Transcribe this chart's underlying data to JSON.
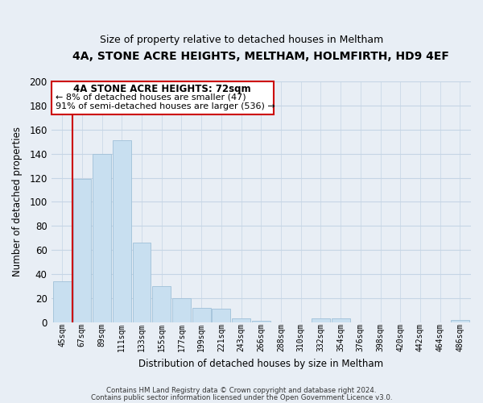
{
  "title": "4A, STONE ACRE HEIGHTS, MELTHAM, HOLMFIRTH, HD9 4EF",
  "subtitle": "Size of property relative to detached houses in Meltham",
  "xlabel": "Distribution of detached houses by size in Meltham",
  "ylabel": "Number of detached properties",
  "bar_labels": [
    "45sqm",
    "67sqm",
    "89sqm",
    "111sqm",
    "133sqm",
    "155sqm",
    "177sqm",
    "199sqm",
    "221sqm",
    "243sqm",
    "266sqm",
    "288sqm",
    "310sqm",
    "332sqm",
    "354sqm",
    "376sqm",
    "398sqm",
    "420sqm",
    "442sqm",
    "464sqm",
    "486sqm"
  ],
  "bar_values": [
    34,
    119,
    140,
    151,
    66,
    30,
    20,
    12,
    11,
    3,
    1,
    0,
    0,
    3,
    3,
    0,
    0,
    0,
    0,
    0,
    2
  ],
  "bar_color": "#c8dff0",
  "bar_edge_color": "#a0c0d8",
  "ylim": [
    0,
    200
  ],
  "yticks": [
    0,
    20,
    40,
    60,
    80,
    100,
    120,
    140,
    160,
    180,
    200
  ],
  "property_line_x": 1.0,
  "property_line_color": "#cc0000",
  "annotation_title": "4A STONE ACRE HEIGHTS: 72sqm",
  "annotation_line1": "← 8% of detached houses are smaller (47)",
  "annotation_line2": "91% of semi-detached houses are larger (536) →",
  "annotation_box_color": "#ffffff",
  "annotation_box_edge": "#cc0000",
  "footer1": "Contains HM Land Registry data © Crown copyright and database right 2024.",
  "footer2": "Contains public sector information licensed under the Open Government Licence v3.0.",
  "background_color": "#e8eef5",
  "plot_background": "#e8eef5",
  "grid_color": "#c5d5e5"
}
